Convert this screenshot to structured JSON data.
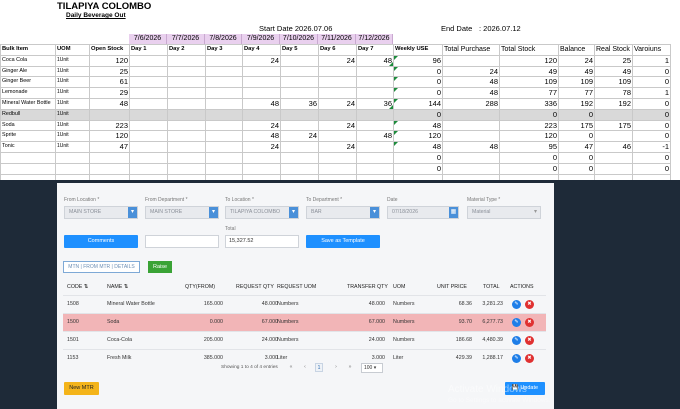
{
  "sheet": {
    "title": "TILAPIYA COLOMBO",
    "subtitle": "Daily Beverage Out",
    "start_date": "Start Date 2026.07.06",
    "end_label": "End Date",
    "end_value": ": 2026.07.12",
    "dates": [
      "7/6/2026",
      "7/7/2026",
      "7/8/2026",
      "7/9/2026",
      "7/10/2026",
      "7/11/2026",
      "7/12/2026"
    ],
    "headers": [
      "Bulk Item",
      "UOM",
      "Open Stock",
      "Day 1",
      "Day 2",
      "Day 3",
      "Day 4",
      "Day 5",
      "Day 6",
      "Day 7",
      "Weekly USE",
      "Total Purchase",
      "Total Stock",
      "Balance",
      "Real Stock",
      "Varoiuns"
    ],
    "rows": [
      [
        "Coca Cola",
        "1Unit",
        "120",
        "",
        "",
        "",
        "24",
        "",
        "24",
        "48",
        "96",
        "",
        "120",
        "24",
        "25",
        "1"
      ],
      [
        "Ginger Ale",
        "1Unit",
        "25",
        "",
        "",
        "",
        "",
        "",
        "",
        "",
        "0",
        "24",
        "49",
        "49",
        "49",
        "0"
      ],
      [
        "Ginger Beer",
        "1Unit",
        "61",
        "",
        "",
        "",
        "",
        "",
        "",
        "",
        "0",
        "48",
        "109",
        "109",
        "109",
        "0"
      ],
      [
        "Lemonade",
        "1Unit",
        "29",
        "",
        "",
        "",
        "",
        "",
        "",
        "",
        "0",
        "48",
        "77",
        "77",
        "78",
        "1"
      ],
      [
        "Mineral Water Bottle",
        "1Unit",
        "48",
        "",
        "",
        "",
        "48",
        "36",
        "24",
        "36",
        "144",
        "288",
        "336",
        "192",
        "192",
        "0"
      ],
      [
        "Redbull",
        "1Unit",
        "",
        "",
        "",
        "",
        "",
        "",
        "",
        "",
        "0",
        "",
        "0",
        "0",
        "",
        "0"
      ],
      [
        "Soda",
        "1Unit",
        "223",
        "",
        "",
        "",
        "24",
        "",
        "24",
        "",
        "48",
        "",
        "223",
        "175",
        "175",
        "0"
      ],
      [
        "Sprite",
        "1Unit",
        "120",
        "",
        "",
        "",
        "48",
        "24",
        "",
        "48",
        "120",
        "",
        "120",
        "0",
        "",
        "0"
      ],
      [
        "Tonic",
        "1Unit",
        "47",
        "",
        "",
        "",
        "24",
        "",
        "24",
        "",
        "48",
        "48",
        "95",
        "47",
        "46",
        "-1"
      ],
      [
        "",
        "",
        "",
        "",
        "",
        "",
        "",
        "",
        "",
        "",
        "0",
        "",
        "0",
        "0",
        "",
        "0"
      ],
      [
        "",
        "",
        "",
        "",
        "",
        "",
        "",
        "",
        "",
        "",
        "0",
        "",
        "0",
        "0",
        "",
        "0"
      ],
      [
        "",
        "",
        "",
        "",
        "",
        "",
        "",
        "",
        "",
        "",
        "",
        "",
        "",
        "",
        "",
        ""
      ]
    ]
  },
  "form": {
    "from_location_label": "From Location *",
    "from_location_value": "MAIN STORE",
    "from_department_label": "From Department *",
    "from_department_value": "MAIN STORE",
    "to_location_label": "To Location *",
    "to_location_value": "TILAPIYA COLOMBO",
    "to_department_label": "To Department *",
    "to_department_value": "BAR",
    "date_label": "Date",
    "date_value": "07/18/2026",
    "material_type_label": "Material Type *",
    "material_type_placeholder": "Material",
    "comments_button": "Comments",
    "total_label": "Total",
    "total_value": "15,327.52",
    "save_template_button": "Save as Template",
    "tab_label": "MTN | FROM MTR | DETAILS",
    "raise_button": "Raise"
  },
  "table": {
    "columns": [
      "CODE",
      "NAME",
      "QTY(FROM)",
      "REQUEST QTY",
      "REQUEST UOM",
      "TRANSFER QTY",
      "UOM",
      "UNIT PRICE",
      "TOTAL",
      "ACTIONS"
    ],
    "rows": [
      {
        "code": "1508",
        "name": "Mineral Water Bottle",
        "qty_from": "165.000",
        "req_qty": "48.000",
        "req_uom": "Numbers",
        "transfer_qty": "48.000",
        "uom": "Numbers",
        "unit_price": "68.36",
        "total": "3,281.23"
      },
      {
        "code": "1500",
        "name": "Soda",
        "qty_from": "0.000",
        "req_qty": "67.000",
        "req_uom": "Numbers",
        "transfer_qty": "67.000",
        "uom": "Numbers",
        "unit_price": "93.70",
        "total": "6,277.73"
      },
      {
        "code": "1501",
        "name": "Coca-Cola",
        "qty_from": "205.000",
        "req_qty": "24.000",
        "req_uom": "Numbers",
        "transfer_qty": "24.000",
        "uom": "Numbers",
        "unit_price": "186.68",
        "total": "4,480.39"
      },
      {
        "code": "1153",
        "name": "Fresh Milk",
        "qty_from": "385.000",
        "req_qty": "3.000",
        "req_uom": "Liter",
        "transfer_qty": "3.000",
        "uom": "Liter",
        "unit_price": "429.39",
        "total": "1,288.17"
      }
    ],
    "showing": "Showing 1 to 4 of 4 entries",
    "current_page": "1",
    "per_page": "100"
  },
  "footer": {
    "new_mtr_button": "New MTR",
    "update_button": "Update"
  },
  "watermark": {
    "line1": "Activate Windows",
    "line2": "Go to Settings to activate Windows."
  }
}
